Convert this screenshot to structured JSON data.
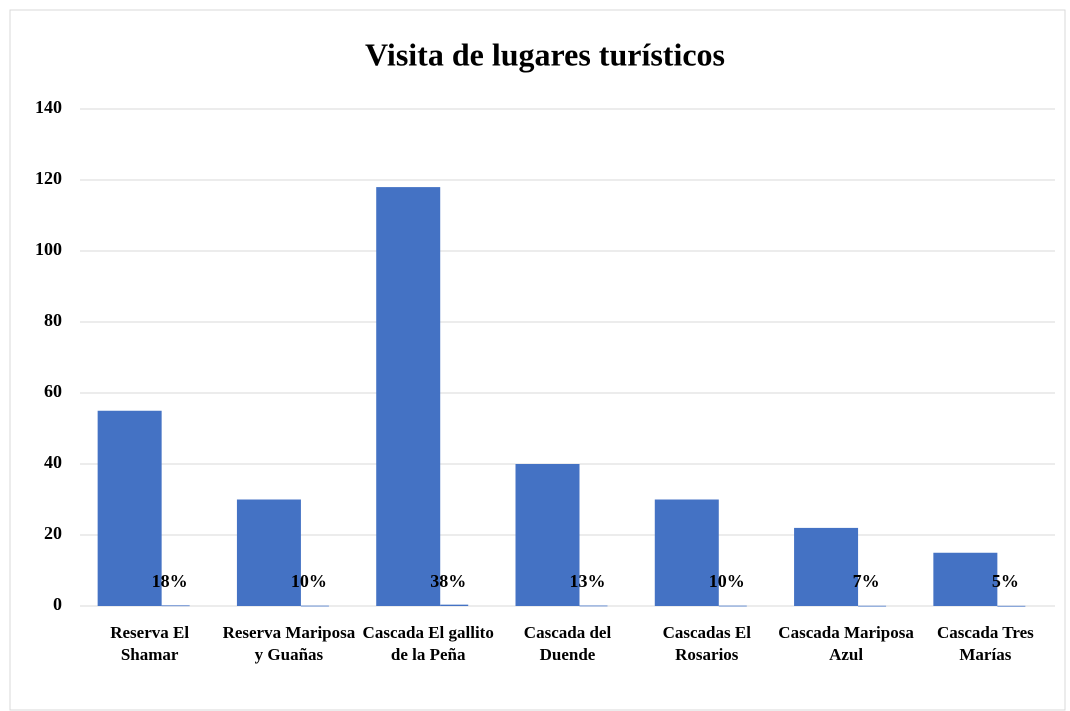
{
  "chart_data": {
    "type": "bar",
    "title": "Visita de lugares turísticos",
    "categories": [
      "Reserva El Shamar",
      "Reserva Mariposa y Guañas",
      "Cascada El gallito de la Peña",
      "Cascada del Duende",
      "Cascadas El Rosarios",
      "Cascada Mariposa Azul",
      "Cascada Tres Marías"
    ],
    "series": [
      {
        "color": "#4472c4",
        "values": [
          55,
          30,
          118,
          40,
          30,
          22,
          15
        ]
      },
      {
        "color": "#4472c4",
        "values": [
          0.18,
          0.1,
          0.38,
          0.13,
          0.1,
          0.07,
          0.05
        ],
        "value_labels": [
          "18%",
          "10%",
          "38%",
          "13%",
          "10%",
          "7%",
          "5%"
        ]
      }
    ],
    "ylim": [
      0,
      140
    ],
    "yticks": [
      0,
      20,
      40,
      60,
      80,
      100,
      120,
      140
    ],
    "grid": true
  }
}
